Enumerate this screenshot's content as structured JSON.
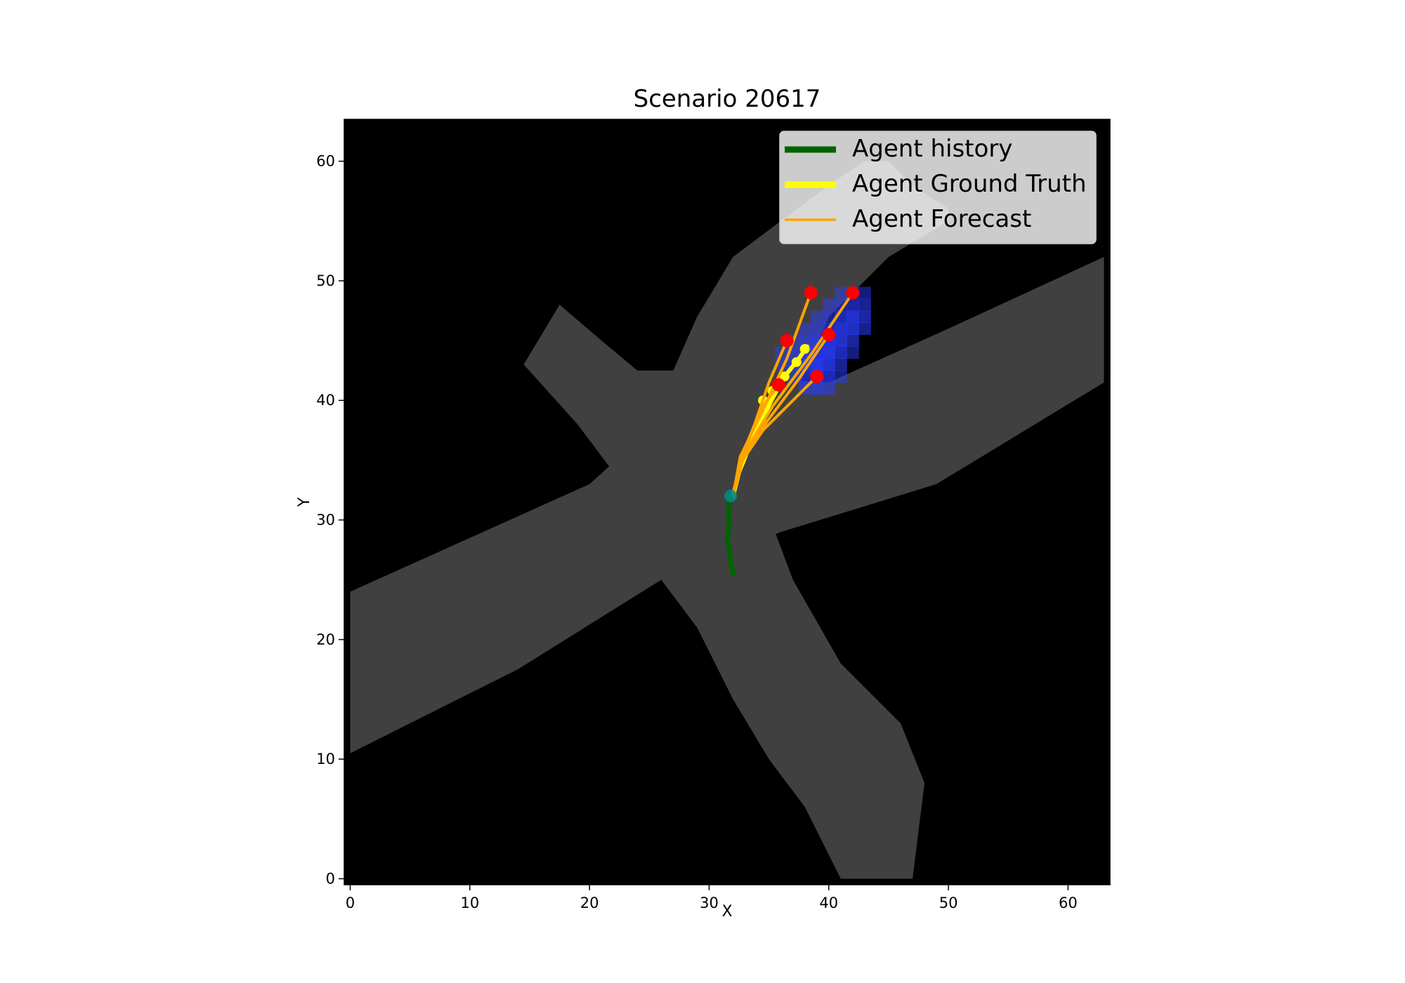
{
  "chart_data": {
    "type": "scatter",
    "title": "Scenario 20617",
    "xlabel": "X",
    "ylabel": "Y",
    "xlim": [
      -0.5,
      63.5
    ],
    "ylim": [
      63.5,
      -0.5
    ],
    "xticks": [
      0,
      10,
      20,
      30,
      40,
      50,
      60
    ],
    "yticks": [
      0,
      10,
      20,
      30,
      40,
      50,
      60
    ],
    "grid": false,
    "legend_position": "upper right",
    "colors": {
      "background": "#000000",
      "road": "#404040",
      "history": "#006400",
      "ground_truth": "#ffff00",
      "forecast": "#ffa500",
      "endpoint": "#ff0000",
      "heatmap": "#2a3cff",
      "agent_marker": "#008b8b"
    },
    "roads": [
      {
        "name": "diagonal-road-wnw-ese",
        "points": [
          [
            0,
            10.5
          ],
          [
            14,
            17.5
          ],
          [
            26,
            25
          ],
          [
            36,
            29
          ],
          [
            49,
            33
          ],
          [
            63,
            41.5
          ],
          [
            63,
            52
          ],
          [
            50,
            46
          ],
          [
            40,
            41.5
          ],
          [
            30,
            42
          ],
          [
            20,
            33
          ],
          [
            0,
            24
          ]
        ]
      },
      {
        "name": "diagonal-road-ne-sw",
        "points": [
          [
            41,
            0
          ],
          [
            47,
            0
          ],
          [
            48,
            8
          ],
          [
            46,
            13
          ],
          [
            41,
            18
          ],
          [
            37,
            25
          ],
          [
            34,
            33
          ],
          [
            33,
            38
          ],
          [
            37,
            40
          ],
          [
            40,
            47
          ],
          [
            45,
            52
          ],
          [
            50,
            55
          ],
          [
            50,
            56
          ],
          [
            47,
            58
          ],
          [
            45,
            60
          ],
          [
            43,
            60
          ],
          [
            40,
            58
          ],
          [
            36,
            55
          ],
          [
            32,
            52
          ],
          [
            29,
            47
          ],
          [
            27,
            42.5
          ],
          [
            24,
            42.5
          ],
          [
            21,
            45
          ],
          [
            17.5,
            48
          ],
          [
            14.5,
            43
          ],
          [
            19,
            38
          ],
          [
            22,
            34
          ],
          [
            26,
            25
          ],
          [
            29,
            21
          ],
          [
            32,
            15
          ],
          [
            35,
            10
          ],
          [
            38,
            6
          ],
          [
            40,
            2
          ]
        ]
      }
    ],
    "heatmap_cells": [
      {
        "x": 38,
        "y": 42,
        "v": 0.5
      },
      {
        "x": 39,
        "y": 42,
        "v": 0.6
      },
      {
        "x": 40,
        "y": 42,
        "v": 0.45
      },
      {
        "x": 37,
        "y": 43,
        "v": 0.4
      },
      {
        "x": 38,
        "y": 43,
        "v": 0.7
      },
      {
        "x": 39,
        "y": 43,
        "v": 0.85
      },
      {
        "x": 40,
        "y": 43,
        "v": 0.7
      },
      {
        "x": 41,
        "y": 43,
        "v": 0.4
      },
      {
        "x": 36,
        "y": 44,
        "v": 0.35
      },
      {
        "x": 37,
        "y": 44,
        "v": 0.6
      },
      {
        "x": 38,
        "y": 44,
        "v": 0.85
      },
      {
        "x": 39,
        "y": 44,
        "v": 1.0
      },
      {
        "x": 40,
        "y": 44,
        "v": 0.85
      },
      {
        "x": 41,
        "y": 44,
        "v": 0.5
      },
      {
        "x": 36,
        "y": 45,
        "v": 0.3
      },
      {
        "x": 37,
        "y": 45,
        "v": 0.5
      },
      {
        "x": 38,
        "y": 45,
        "v": 0.75
      },
      {
        "x": 39,
        "y": 45,
        "v": 0.9
      },
      {
        "x": 40,
        "y": 45,
        "v": 0.95
      },
      {
        "x": 41,
        "y": 45,
        "v": 0.7
      },
      {
        "x": 42,
        "y": 45,
        "v": 0.35
      },
      {
        "x": 37,
        "y": 46,
        "v": 0.35
      },
      {
        "x": 38,
        "y": 46,
        "v": 0.55
      },
      {
        "x": 39,
        "y": 46,
        "v": 0.75
      },
      {
        "x": 40,
        "y": 46,
        "v": 0.9
      },
      {
        "x": 41,
        "y": 46,
        "v": 0.85
      },
      {
        "x": 42,
        "y": 46,
        "v": 0.55
      },
      {
        "x": 38,
        "y": 47,
        "v": 0.35
      },
      {
        "x": 39,
        "y": 47,
        "v": 0.5
      },
      {
        "x": 40,
        "y": 47,
        "v": 0.7
      },
      {
        "x": 41,
        "y": 47,
        "v": 0.85
      },
      {
        "x": 42,
        "y": 47,
        "v": 0.8
      },
      {
        "x": 43,
        "y": 47,
        "v": 0.45
      },
      {
        "x": 39,
        "y": 48,
        "v": 0.35
      },
      {
        "x": 40,
        "y": 48,
        "v": 0.5
      },
      {
        "x": 41,
        "y": 48,
        "v": 0.7
      },
      {
        "x": 42,
        "y": 48,
        "v": 0.85
      },
      {
        "x": 43,
        "y": 48,
        "v": 0.6
      },
      {
        "x": 40,
        "y": 49,
        "v": 0.35
      },
      {
        "x": 41,
        "y": 49,
        "v": 0.5
      },
      {
        "x": 42,
        "y": 49,
        "v": 0.6
      },
      {
        "x": 43,
        "y": 49,
        "v": 0.5
      },
      {
        "x": 41,
        "y": 50,
        "v": 0.3
      },
      {
        "x": 42,
        "y": 50,
        "v": 0.4
      },
      {
        "x": 43,
        "y": 50,
        "v": 0.35
      }
    ],
    "series": [
      {
        "name": "Agent history",
        "kind": "history",
        "points": [
          [
            32.0,
            25.5
          ],
          [
            31.8,
            26.5
          ],
          [
            31.7,
            27.5
          ],
          [
            31.5,
            28.5
          ],
          [
            31.7,
            29.5
          ],
          [
            31.6,
            30.5
          ],
          [
            31.7,
            31.5
          ],
          [
            31.8,
            32.0
          ]
        ]
      },
      {
        "name": "Agent Ground Truth",
        "kind": "ground_truth",
        "points": [
          [
            32.0,
            32.0
          ],
          [
            32.5,
            34.0
          ],
          [
            33.3,
            36.0
          ],
          [
            34.2,
            38.0
          ],
          [
            35.2,
            40.0
          ],
          [
            36.3,
            42.0
          ],
          [
            37.5,
            43.5
          ],
          [
            38.2,
            44.5
          ]
        ]
      },
      {
        "name": "Agent Forecast",
        "kind": "forecast",
        "forecasts": [
          [
            [
              32.0,
              32.0
            ],
            [
              32.8,
              35.0
            ],
            [
              34.5,
              37.5
            ],
            [
              36.5,
              39.5
            ],
            [
              39.0,
              42.0
            ]
          ],
          [
            [
              32.0,
              32.0
            ],
            [
              32.8,
              35.0
            ],
            [
              34.8,
              38.2
            ],
            [
              37.5,
              41.8
            ],
            [
              40.0,
              45.5
            ]
          ],
          [
            [
              32.0,
              32.0
            ],
            [
              32.7,
              35.2
            ],
            [
              35.3,
              39.5
            ],
            [
              38.5,
              43.8
            ],
            [
              42.0,
              49.0
            ]
          ],
          [
            [
              32.0,
              32.0
            ],
            [
              32.6,
              35.3
            ],
            [
              34.5,
              39.2
            ],
            [
              36.5,
              43.5
            ],
            [
              38.5,
              49.0
            ]
          ],
          [
            [
              32.0,
              32.0
            ],
            [
              32.6,
              35.0
            ],
            [
              33.8,
              38.0
            ],
            [
              35.0,
              41.5
            ],
            [
              36.5,
              45.0
            ]
          ],
          [
            [
              32.0,
              32.0
            ],
            [
              32.6,
              34.8
            ],
            [
              33.6,
              37.5
            ],
            [
              34.5,
              39.5
            ],
            [
              35.8,
              41.3
            ]
          ]
        ]
      }
    ],
    "forecast_endpoints": [
      [
        39.0,
        42.0
      ],
      [
        40.0,
        45.5
      ],
      [
        42.0,
        49.0
      ],
      [
        38.5,
        49.0
      ],
      [
        36.5,
        45.0
      ],
      [
        35.8,
        41.3
      ]
    ],
    "gt_markers": [
      [
        34.5,
        40.0
      ],
      [
        35.3,
        40.8
      ],
      [
        36.3,
        42.0
      ],
      [
        37.3,
        43.2
      ],
      [
        38.0,
        44.3
      ]
    ],
    "agent_position": [
      31.8,
      32.0
    ]
  }
}
